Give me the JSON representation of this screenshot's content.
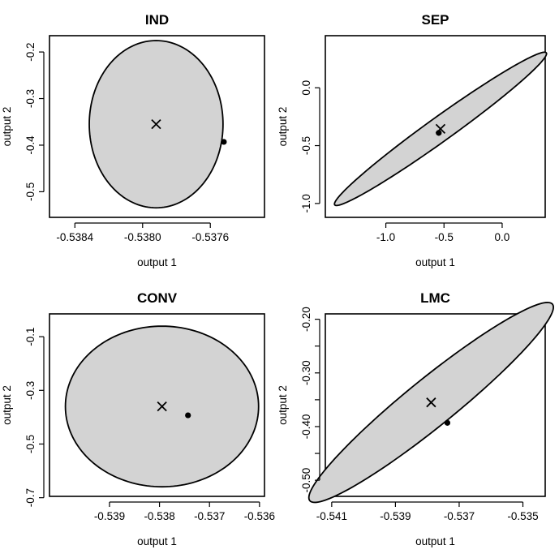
{
  "chart_data": [
    {
      "type": "scatter",
      "title": "IND",
      "xlabel": "output 1",
      "ylabel": "output 2",
      "xlim": [
        -0.53855,
        -0.53728
      ],
      "ylim": [
        -0.555,
        -0.165
      ],
      "xticks": [
        -0.5384,
        -0.538,
        -0.5376
      ],
      "xtick_labels": [
        "-0.5384",
        "-0.5380",
        "-0.5376"
      ],
      "yticks": [
        -0.5,
        -0.4,
        -0.3,
        -0.2
      ],
      "ytick_labels": [
        "-0.5",
        "-0.4",
        "-0.3",
        "-0.2"
      ],
      "region": {
        "center": [
          -0.53792,
          -0.355
        ],
        "semi_axis_1": 0.000395,
        "semi_axis_2": 0.1795,
        "angle_deg": 0,
        "fill": "#d3d3d3",
        "edge": "#000000"
      },
      "center_marker": {
        "x": -0.53792,
        "y": -0.355,
        "shape": "cross"
      },
      "point": {
        "x": -0.53752,
        "y": -0.393,
        "shape": "filled-circle"
      }
    },
    {
      "type": "scatter",
      "title": "SEP",
      "xlabel": "output 1",
      "ylabel": "output 2",
      "xlim": [
        -1.52,
        0.37
      ],
      "ylim": [
        -1.12,
        0.45
      ],
      "xticks": [
        -1.0,
        -0.5,
        0.0
      ],
      "xtick_labels": [
        "-1.0",
        "-0.5",
        "0.0"
      ],
      "yticks": [
        -1.0,
        -0.5,
        0.0
      ],
      "ytick_labels": [
        "-1.0",
        "-0.5",
        "0.0"
      ],
      "region": {
        "center": [
          -0.53,
          -0.355
        ],
        "semi_axis_1": 1.12,
        "semi_axis_2": 0.105,
        "angle_deg": 35.7,
        "fill": "#d3d3d3",
        "edge": "#000000"
      },
      "center_marker": {
        "x": -0.53,
        "y": -0.355,
        "shape": "cross"
      },
      "point": {
        "x": -0.545,
        "y": -0.39,
        "shape": "filled-circle"
      }
    },
    {
      "type": "scatter",
      "title": "CONV",
      "xlabel": "output 1",
      "ylabel": "output 2",
      "xlim": [
        -0.5402,
        -0.5359
      ],
      "ylim": [
        -0.695,
        -0.015
      ],
      "xticks": [
        -0.539,
        -0.538,
        -0.537,
        -0.536
      ],
      "xtick_labels": [
        "-0.539",
        "-0.538",
        "-0.537",
        "-0.536"
      ],
      "yticks": [
        -0.7,
        -0.5,
        -0.3,
        -0.1
      ],
      "ytick_labels": [
        "-0.7",
        "-0.5",
        "-0.3",
        "-0.1"
      ],
      "region": {
        "center": [
          -0.53795,
          -0.36
        ],
        "semi_axis_1": 0.001932,
        "semi_axis_2": 0.2993,
        "angle_deg": 0,
        "fill": "#d3d3d3",
        "edge": "#000000"
      },
      "center_marker": {
        "x": -0.53795,
        "y": -0.36,
        "shape": "cross"
      },
      "point": {
        "x": -0.53743,
        "y": -0.393,
        "shape": "filled-circle"
      }
    },
    {
      "type": "scatter",
      "title": "LMC",
      "xlabel": "output 1",
      "ylabel": "output 2",
      "xlim": [
        -0.5412,
        -0.5343
      ],
      "ylim": [
        -0.53,
        -0.19
      ],
      "xticks": [
        -0.541,
        -0.539,
        -0.537,
        -0.535
      ],
      "xtick_labels": [
        "-0.541",
        "-0.539",
        "-0.537",
        "-0.535"
      ],
      "yticks": [
        -0.5,
        -0.4,
        -0.3,
        -0.2
      ],
      "ytick_labels": [
        "-0.50",
        "-0.40",
        "-0.30",
        "-0.20"
      ],
      "yticks_minor": [
        -0.45,
        -0.35,
        -0.25
      ],
      "region": {
        "center": [
          -0.53788,
          -0.355
        ],
        "semi_axis_1": 0.0049,
        "semi_axis_2": 0.0445,
        "angle_deg": 39,
        "fill": "#d3d3d3",
        "edge": "#000000"
      },
      "center_marker": {
        "x": -0.53788,
        "y": -0.355,
        "shape": "cross"
      },
      "point": {
        "x": -0.53737,
        "y": -0.393,
        "shape": "filled-circle"
      }
    }
  ]
}
